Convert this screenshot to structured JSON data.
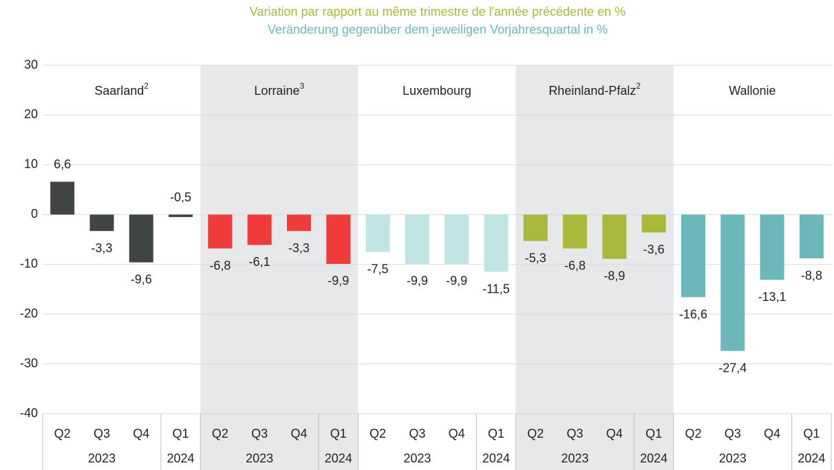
{
  "chart_data": {
    "type": "bar",
    "title": "Variation par rapport au même trimestre de l'année précédente en %",
    "subtitle": "Veränderung gegenüber dem jeweiligen Vorjahresquartal in %",
    "title_color": "#a9b73a",
    "subtitle_color": "#6bb7b9",
    "categories": [
      "Q2",
      "Q3",
      "Q4",
      "Q1"
    ],
    "years": [
      "2023",
      "2024"
    ],
    "ylim": [
      -40,
      30
    ],
    "yticks": [
      -40,
      -30,
      -20,
      -10,
      0,
      10,
      20,
      30
    ],
    "grid": true,
    "shade_color": "#e6e8e9",
    "series": [
      {
        "name": "Saarland",
        "note": "2",
        "color": "#404542",
        "values": [
          6.6,
          -3.3,
          -9.6,
          -0.5
        ],
        "value_labels": [
          "6,6",
          "-3,3",
          "-9,6",
          "-0,5"
        ],
        "shaded": false
      },
      {
        "name": "Lorraine",
        "note": "3",
        "color": "#ef3b39",
        "values": [
          -6.8,
          -6.1,
          -3.3,
          -9.9
        ],
        "value_labels": [
          "-6,8",
          "-6,1",
          "-3,3",
          "-9,9"
        ],
        "shaded": true
      },
      {
        "name": "Luxembourg",
        "color": "#bfe4e3",
        "values": [
          -7.5,
          -9.9,
          -9.9,
          -11.5
        ],
        "value_labels": [
          "-7,5",
          "-9,9",
          "-9,9",
          "-11,5"
        ],
        "shaded": false
      },
      {
        "name": "Rheinland-Pfalz",
        "note": "2",
        "color": "#a9b73a",
        "values": [
          -5.3,
          -6.8,
          -8.9,
          -3.6
        ],
        "value_labels": [
          "-5,3",
          "-6,8",
          "-8,9",
          "-3,6"
        ],
        "shaded": true
      },
      {
        "name": "Wallonie",
        "color": "#6bb7b9",
        "values": [
          -16.6,
          -27.4,
          -13.1,
          -8.8
        ],
        "value_labels": [
          "-16,6",
          "-27,4",
          "-13,1",
          "-8,8"
        ],
        "shaded": false
      }
    ]
  }
}
